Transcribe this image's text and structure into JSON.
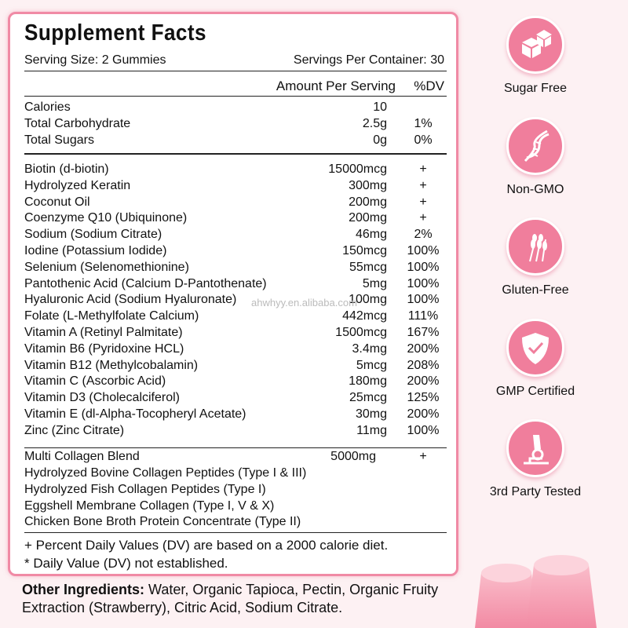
{
  "title": "Supplement Facts",
  "serving_size": "Serving Size: 2 Gummies",
  "servings_per_container": "Servings Per Container: 30",
  "col_amount": "Amount Per Serving",
  "col_dv": "%DV",
  "macros": [
    {
      "name": "Calories",
      "amount": "10",
      "dv": ""
    },
    {
      "name": "Total Carbohydrate",
      "amount": "2.5g",
      "dv": "1%"
    },
    {
      "name": "Total Sugars",
      "amount": "0g",
      "dv": "0%"
    }
  ],
  "nutrients": [
    {
      "name": "Biotin (d-biotin)",
      "amount": "15000mcg",
      "dv": "+"
    },
    {
      "name": "Hydrolyzed Keratin",
      "amount": "300mg",
      "dv": "+"
    },
    {
      "name": "Coconut Oil",
      "amount": "200mg",
      "dv": "+"
    },
    {
      "name": "Coenzyme Q10 (Ubiquinone)",
      "amount": "200mg",
      "dv": "+"
    },
    {
      "name": "Sodium (Sodium Citrate)",
      "amount": "46mg",
      "dv": "2%"
    },
    {
      "name": "Iodine (Potassium Iodide)",
      "amount": "150mcg",
      "dv": "100%"
    },
    {
      "name": "Selenium (Selenomethionine)",
      "amount": "55mcg",
      "dv": "100%"
    },
    {
      "name": "Pantothenic Acid (Calcium D-Pantothenate)",
      "amount": "5mg",
      "dv": "100%"
    },
    {
      "name": "Hyaluronic Acid (Sodium Hyaluronate)",
      "amount": "100mg",
      "dv": "100%"
    },
    {
      "name": "Folate (L-Methylfolate Calcium)",
      "amount": "442mcg",
      "dv": "111%"
    },
    {
      "name": "Vitamin A (Retinyl Palmitate)",
      "amount": "1500mcg",
      "dv": "167%"
    },
    {
      "name": "Vitamin B6 (Pyridoxine HCL)",
      "amount": "3.4mg",
      "dv": "200%"
    },
    {
      "name": "Vitamin B12 (Methylcobalamin)",
      "amount": "5mcg",
      "dv": "208%"
    },
    {
      "name": "Vitamin C (Ascorbic Acid)",
      "amount": "180mg",
      "dv": "200%"
    },
    {
      "name": "Vitamin D3 (Cholecalciferol)",
      "amount": "25mcg",
      "dv": "125%"
    },
    {
      "name": "Vitamin E (dl-Alpha-Tocopheryl Acetate)",
      "amount": "30mg",
      "dv": "200%"
    },
    {
      "name": "Zinc (Zinc Citrate)",
      "amount": "11mg",
      "dv": "100%"
    }
  ],
  "collagen": {
    "name": "Multi Collagen Blend",
    "amount": "5000mg",
    "dv": "+",
    "components": [
      "Hydrolyzed Bovine Collagen Peptides (Type I & III)",
      "Hydrolyzed Fish Collagen Peptides (Type I)",
      "Eggshell Membrane Collagen (Type I, V & X)",
      "Chicken Bone Broth Protein Concentrate (Type II)"
    ]
  },
  "footnotes": [
    "+ Percent Daily Values (DV) are based on a 2000 calorie diet.",
    "* Daily Value (DV) not established."
  ],
  "other_label": "Other Ingredients:",
  "other_text": " Water, Organic Tapioca, Pectin, Organic Fruity Extraction (Strawberry), Citric Acid, Sodium Citrate.",
  "watermark": "ahwhyy.en.alibaba.com",
  "badges": [
    {
      "label": "Sugar Free",
      "icon": "sugar-cube-icon"
    },
    {
      "label": "Non-GMO",
      "icon": "dna-icon"
    },
    {
      "label": "Gluten-Free",
      "icon": "wheat-icon"
    },
    {
      "label": "GMP Certified",
      "icon": "shield-check-icon"
    },
    {
      "label": "3rd Party Tested",
      "icon": "microscope-icon"
    }
  ],
  "colors": {
    "accent": "#f07e9c",
    "border": "#f08aa5",
    "background": "#fdf1f3"
  }
}
